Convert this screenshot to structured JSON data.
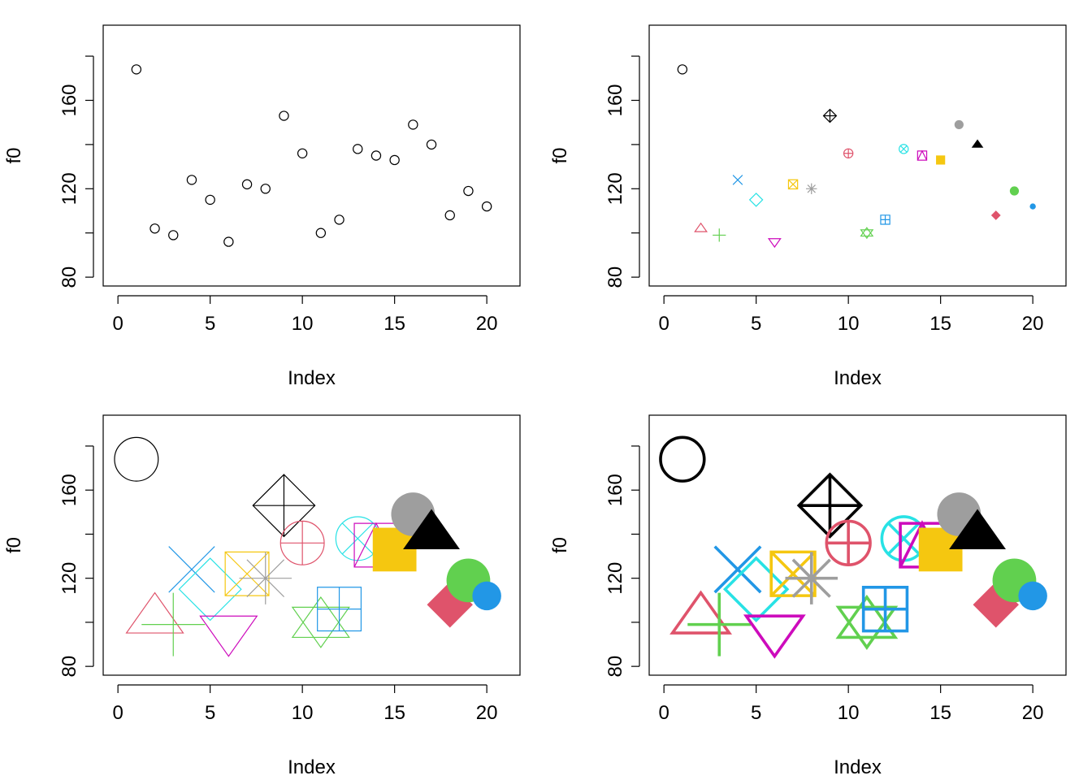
{
  "figure": {
    "panel_ids": [
      "top-left",
      "top-right",
      "bottom-left",
      "bottom-right"
    ]
  },
  "palette": [
    "#000000",
    "#DF536B",
    "#61D04F",
    "#2297E6",
    "#28E2E5",
    "#CD0BBC",
    "#F5C710",
    "#9E9E9E"
  ],
  "chart_data": [
    {
      "panel": "top-left",
      "type": "scatter",
      "x": [
        1,
        2,
        3,
        4,
        5,
        6,
        7,
        8,
        9,
        10,
        11,
        12,
        13,
        14,
        15,
        16,
        17,
        18,
        19,
        20
      ],
      "y": [
        174,
        102,
        99,
        124,
        115,
        96,
        122,
        120,
        153,
        136,
        100,
        106,
        138,
        135,
        133,
        149,
        140,
        108,
        119,
        112
      ],
      "pch": [
        1,
        1,
        1,
        1,
        1,
        1,
        1,
        1,
        1,
        1,
        1,
        1,
        1,
        1,
        1,
        1,
        1,
        1,
        1,
        1
      ],
      "colors": [
        "#000000",
        "#000000",
        "#000000",
        "#000000",
        "#000000",
        "#000000",
        "#000000",
        "#000000",
        "#000000",
        "#000000",
        "#000000",
        "#000000",
        "#000000",
        "#000000",
        "#000000",
        "#000000",
        "#000000",
        "#000000",
        "#000000",
        "#000000"
      ],
      "symbol_scale": [
        1,
        1,
        1,
        1,
        1,
        1,
        1,
        1,
        1,
        1,
        1,
        1,
        1,
        1,
        1,
        1,
        1,
        1,
        1,
        1
      ],
      "line_weight": 1,
      "xlabel": "Index",
      "ylabel": "f0",
      "xlim": [
        -0.8,
        21.8
      ],
      "ylim": [
        76,
        194
      ],
      "xticks": [
        "0",
        "5",
        "10",
        "15",
        "20"
      ],
      "yticks": [
        "80",
        "120",
        "160"
      ],
      "ytick_positions": [
        80,
        100,
        120,
        140,
        160,
        180
      ],
      "grid": false
    },
    {
      "panel": "top-right",
      "type": "scatter",
      "x": [
        1,
        2,
        3,
        4,
        5,
        6,
        7,
        8,
        9,
        10,
        11,
        12,
        13,
        14,
        15,
        16,
        17,
        18,
        19,
        20
      ],
      "y": [
        174,
        102,
        99,
        124,
        115,
        96,
        122,
        120,
        153,
        136,
        100,
        106,
        138,
        135,
        133,
        149,
        140,
        108,
        119,
        112
      ],
      "pch": [
        1,
        2,
        3,
        4,
        5,
        6,
        7,
        8,
        9,
        10,
        11,
        12,
        13,
        14,
        15,
        16,
        17,
        18,
        19,
        20
      ],
      "colors": [
        "#000000",
        "#DF536B",
        "#61D04F",
        "#2297E6",
        "#28E2E5",
        "#CD0BBC",
        "#F5C710",
        "#9E9E9E",
        "#000000",
        "#DF536B",
        "#61D04F",
        "#2297E6",
        "#28E2E5",
        "#CD0BBC",
        "#F5C710",
        "#9E9E9E",
        "#000000",
        "#DF536B",
        "#61D04F",
        "#2297E6"
      ],
      "symbol_scale": [
        1,
        1,
        1,
        1,
        1,
        1,
        1,
        1,
        1,
        1,
        1,
        1,
        1,
        1,
        1,
        1,
        1,
        1,
        1,
        1
      ],
      "line_weight": 1,
      "xlabel": "Index",
      "ylabel": "f0",
      "xlim": [
        -0.8,
        21.8
      ],
      "ylim": [
        76,
        194
      ],
      "xticks": [
        "0",
        "5",
        "10",
        "15",
        "20"
      ],
      "yticks": [
        "80",
        "120",
        "160"
      ],
      "ytick_positions": [
        80,
        100,
        120,
        140,
        160,
        180
      ],
      "grid": false
    },
    {
      "panel": "bottom-left",
      "type": "scatter",
      "x": [
        1,
        2,
        3,
        4,
        5,
        6,
        7,
        8,
        9,
        10,
        11,
        12,
        13,
        14,
        15,
        16,
        17,
        18,
        19,
        20
      ],
      "y": [
        174,
        102,
        99,
        124,
        115,
        96,
        122,
        120,
        153,
        136,
        100,
        106,
        138,
        135,
        133,
        149,
        140,
        108,
        119,
        112
      ],
      "pch": [
        1,
        2,
        3,
        4,
        5,
        6,
        7,
        8,
        9,
        10,
        11,
        12,
        13,
        14,
        15,
        16,
        17,
        18,
        19,
        20
      ],
      "colors": [
        "#000000",
        "#DF536B",
        "#61D04F",
        "#2297E6",
        "#28E2E5",
        "#CD0BBC",
        "#F5C710",
        "#9E9E9E",
        "#000000",
        "#DF536B",
        "#61D04F",
        "#2297E6",
        "#28E2E5",
        "#CD0BBC",
        "#F5C710",
        "#9E9E9E",
        "#000000",
        "#DF536B",
        "#61D04F",
        "#2297E6"
      ],
      "symbol_scale": [
        4.8,
        4.8,
        4.8,
        4.8,
        4.8,
        4.8,
        4.8,
        4.8,
        4.8,
        4.8,
        4.8,
        4.8,
        4.8,
        4.8,
        4.8,
        4.8,
        4.8,
        4.8,
        4.8,
        4.8
      ],
      "line_weight": 1,
      "xlabel": "Index",
      "ylabel": "f0",
      "xlim": [
        -0.8,
        21.8
      ],
      "ylim": [
        76,
        194
      ],
      "xticks": [
        "0",
        "5",
        "10",
        "15",
        "20"
      ],
      "yticks": [
        "80",
        "120",
        "160"
      ],
      "ytick_positions": [
        80,
        100,
        120,
        140,
        160,
        180
      ],
      "grid": false
    },
    {
      "panel": "bottom-right",
      "type": "scatter",
      "x": [
        1,
        2,
        3,
        4,
        5,
        6,
        7,
        8,
        9,
        10,
        11,
        12,
        13,
        14,
        15,
        16,
        17,
        18,
        19,
        20
      ],
      "y": [
        174,
        102,
        99,
        124,
        115,
        96,
        122,
        120,
        153,
        136,
        100,
        106,
        138,
        135,
        133,
        149,
        140,
        108,
        119,
        112
      ],
      "pch": [
        1,
        2,
        3,
        4,
        5,
        6,
        7,
        8,
        9,
        10,
        11,
        12,
        13,
        14,
        15,
        16,
        17,
        18,
        19,
        20
      ],
      "colors": [
        "#000000",
        "#DF536B",
        "#61D04F",
        "#2297E6",
        "#28E2E5",
        "#CD0BBC",
        "#F5C710",
        "#9E9E9E",
        "#000000",
        "#DF536B",
        "#61D04F",
        "#2297E6",
        "#28E2E5",
        "#CD0BBC",
        "#F5C710",
        "#9E9E9E",
        "#000000",
        "#DF536B",
        "#61D04F",
        "#2297E6"
      ],
      "symbol_scale": [
        4.8,
        4.8,
        4.8,
        4.8,
        4.8,
        4.8,
        4.8,
        4.8,
        4.8,
        4.8,
        4.8,
        4.8,
        4.8,
        4.8,
        4.8,
        4.8,
        4.8,
        4.8,
        4.8,
        4.8
      ],
      "line_weight": 3,
      "xlabel": "Index",
      "ylabel": "f0",
      "xlim": [
        -0.8,
        21.8
      ],
      "ylim": [
        76,
        194
      ],
      "xticks": [
        "0",
        "5",
        "10",
        "15",
        "20"
      ],
      "yticks": [
        "80",
        "120",
        "160"
      ],
      "ytick_positions": [
        80,
        100,
        120,
        140,
        160,
        180
      ],
      "grid": false
    }
  ]
}
